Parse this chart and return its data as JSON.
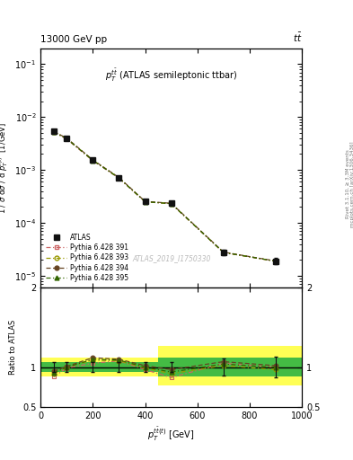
{
  "title_top": "13000 GeV pp",
  "title_top_right": "tt̅",
  "plot_title": "$p_T^{t\\bar{t}}$ (ATLAS semileptonic ttbar)",
  "watermark": "ATLAS_2019_I1750330",
  "right_label_top": "Rivet 3.1.10, ≥ 3.3M events",
  "right_label_bot": "mcplots.cern.ch [arXiv:1306.3436]",
  "xlabel": "$p_T^{t\\bar{t}(t)}$ [GeV]",
  "ylabel": "1 / $\\sigma$ d$\\sigma$ / d $p_T^{\\bar{t}(t)}$  [1/GeV]",
  "ylabel_ratio": "Ratio to ATLAS",
  "xlim": [
    0,
    1000
  ],
  "ylim_main": [
    6e-06,
    0.2
  ],
  "ylim_ratio": [
    0.5,
    2.0
  ],
  "atlas_x": [
    50,
    100,
    200,
    300,
    400,
    500,
    700,
    900
  ],
  "atlas_y": [
    0.0055,
    0.004,
    0.00155,
    0.00072,
    0.000255,
    0.000235,
    2.8e-05,
    1.9e-05
  ],
  "atlas_yerr_lo": [
    0.00035,
    0.00025,
    0.0001,
    4.5e-05,
    1.6e-05,
    1.5e-05,
    3e-06,
    2.5e-06
  ],
  "atlas_yerr_hi": [
    0.00035,
    0.00025,
    0.0001,
    4.5e-05,
    1.6e-05,
    1.5e-05,
    3e-06,
    2.5e-06
  ],
  "pythia391_y": [
    0.0052,
    0.00385,
    0.0015,
    0.0007,
    0.00025,
    0.00023,
    2.75e-05,
    1.88e-05
  ],
  "pythia393_y": [
    0.0053,
    0.00395,
    0.00153,
    0.00071,
    0.000252,
    0.000232,
    2.77e-05,
    1.89e-05
  ],
  "pythia394_y": [
    0.00535,
    0.004,
    0.00155,
    0.00072,
    0.000255,
    0.000235,
    2.8e-05,
    1.9e-05
  ],
  "pythia395_y": [
    0.00525,
    0.0039,
    0.00152,
    0.000705,
    0.000251,
    0.000231,
    2.76e-05,
    1.885e-05
  ],
  "ratio391": [
    0.88,
    0.99,
    1.05,
    1.08,
    0.97,
    0.87,
    1.05,
    1.0
  ],
  "ratio393": [
    0.92,
    1.0,
    1.09,
    1.08,
    0.99,
    0.92,
    1.02,
    0.97
  ],
  "ratio394": [
    0.95,
    1.01,
    1.12,
    1.1,
    1.02,
    0.97,
    1.07,
    1.02
  ],
  "ratio395": [
    0.93,
    1.0,
    1.1,
    1.09,
    1.0,
    0.94,
    1.04,
    1.0
  ],
  "bin_edges": [
    0,
    75,
    150,
    250,
    350,
    450,
    650,
    800,
    1000
  ],
  "band_yellow_lo": [
    0.88,
    0.88,
    0.88,
    0.88,
    0.88,
    0.77,
    0.77,
    0.77
  ],
  "band_yellow_hi": [
    1.12,
    1.12,
    1.12,
    1.12,
    1.12,
    1.27,
    1.27,
    1.27
  ],
  "band_green_lo": [
    0.94,
    0.94,
    0.94,
    0.94,
    0.94,
    0.88,
    0.88,
    0.88
  ],
  "band_green_hi": [
    1.06,
    1.06,
    1.06,
    1.06,
    1.06,
    1.12,
    1.12,
    1.12
  ],
  "color391": "#cc6666",
  "color393": "#999900",
  "color394": "#664422",
  "color395": "#336600",
  "atlas_color": "#111111",
  "yellow_color": "#ffff55",
  "green_color": "#44bb44",
  "bg_color": "#ffffff"
}
